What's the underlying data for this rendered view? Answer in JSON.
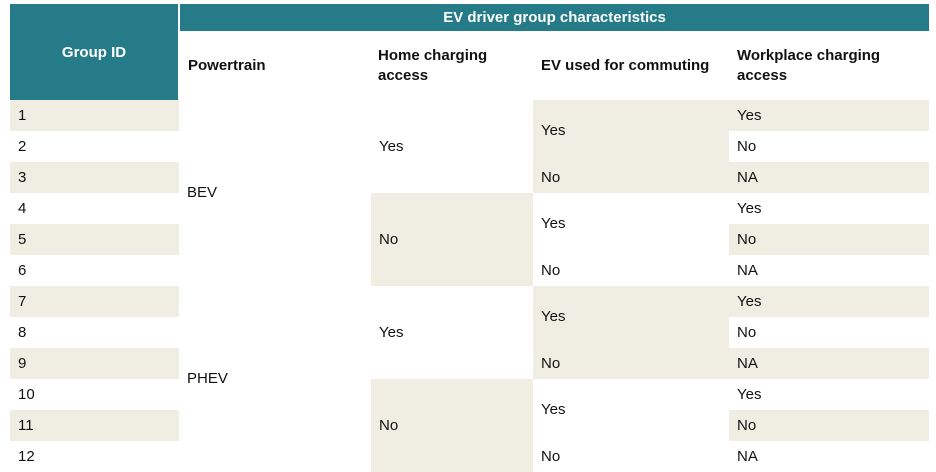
{
  "table": {
    "header": {
      "group_id": "Group ID",
      "group_title": "EV driver group characteristics",
      "powertrain": "Powertrain",
      "home_charging": "Home charging access",
      "ev_commuting": "EV used for commuting",
      "workplace_charging": "Workplace charging access"
    },
    "rows": [
      {
        "id": "1",
        "workplace": "Yes"
      },
      {
        "id": "2",
        "workplace": "No"
      },
      {
        "id": "3",
        "workplace": "NA"
      },
      {
        "id": "4",
        "workplace": "Yes"
      },
      {
        "id": "5",
        "workplace": "No"
      },
      {
        "id": "6",
        "workplace": "NA"
      },
      {
        "id": "7",
        "workplace": "Yes"
      },
      {
        "id": "8",
        "workplace": "No"
      },
      {
        "id": "9",
        "workplace": "NA"
      },
      {
        "id": "10",
        "workplace": "Yes"
      },
      {
        "id": "11",
        "workplace": "No"
      },
      {
        "id": "12",
        "workplace": "NA"
      }
    ],
    "powertrain_groups": [
      "BEV",
      "PHEV"
    ],
    "home_groups": [
      "Yes",
      "No",
      "Yes",
      "No"
    ],
    "commute_groups": [
      "Yes",
      "No",
      "Yes",
      "No",
      "Yes",
      "No",
      "Yes",
      "No"
    ]
  }
}
